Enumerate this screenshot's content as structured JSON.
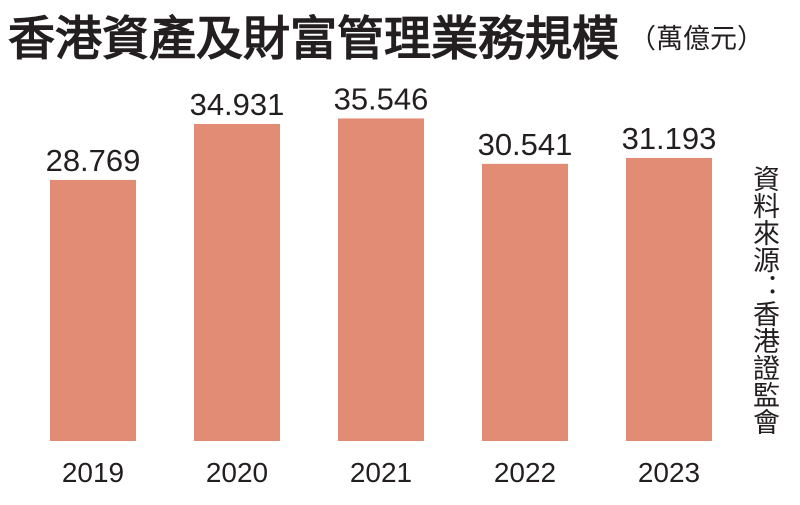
{
  "chart_data": {
    "type": "bar",
    "title": "香港資產及財富管理業務規模",
    "unit": "（萬億元）",
    "source": "資料來源：香港證監會",
    "categories": [
      "2019",
      "2020",
      "2021",
      "2022",
      "2023"
    ],
    "values": [
      28.769,
      34.931,
      35.546,
      30.541,
      31.193
    ],
    "value_labels": [
      "28.769",
      "34.931",
      "35.546",
      "30.541",
      "31.193"
    ],
    "bar_color": "#e28b75",
    "ylim": [
      0,
      38.9
    ],
    "grid": false,
    "legend": "none"
  }
}
